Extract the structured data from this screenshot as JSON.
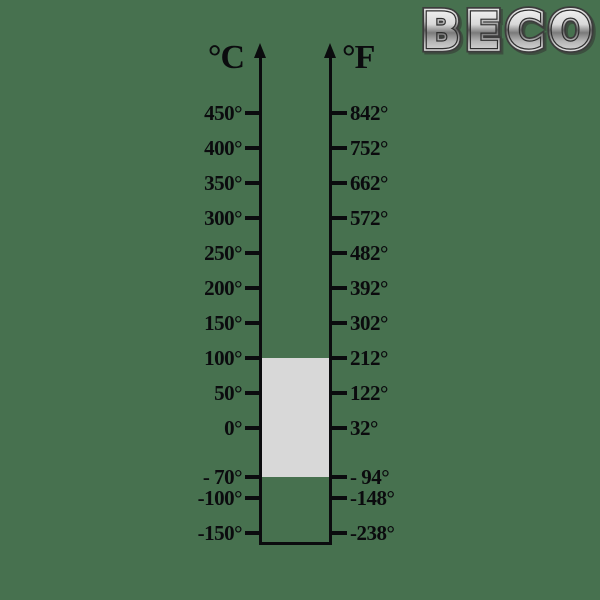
{
  "logo": {
    "text": "BECO"
  },
  "colors": {
    "background": "#47714F",
    "ink": "#0b0b0e",
    "highlight_fill": "#d8d8d8",
    "logo_silver": "#d8d8d8",
    "logo_outline": "#3c3c3c"
  },
  "chart_data": {
    "type": "table",
    "title": "",
    "left_axis": {
      "label": "°C"
    },
    "right_axis": {
      "label": "°F"
    },
    "ticks": [
      {
        "celsius": 450,
        "c_label": "450°",
        "f_label": "842°"
      },
      {
        "celsius": 400,
        "c_label": "400°",
        "f_label": "752°"
      },
      {
        "celsius": 350,
        "c_label": "350°",
        "f_label": "662°"
      },
      {
        "celsius": 300,
        "c_label": "300°",
        "f_label": "572°"
      },
      {
        "celsius": 250,
        "c_label": "250°",
        "f_label": "482°"
      },
      {
        "celsius": 200,
        "c_label": "200°",
        "f_label": "392°"
      },
      {
        "celsius": 150,
        "c_label": "150°",
        "f_label": "302°"
      },
      {
        "celsius": 100,
        "c_label": "100°",
        "f_label": "212°"
      },
      {
        "celsius": 50,
        "c_label": "50°",
        "f_label": "122°"
      },
      {
        "celsius": 0,
        "c_label": "0°",
        "f_label": "32°"
      },
      {
        "celsius": -70,
        "c_label": "- 70°",
        "f_label": "- 94°"
      },
      {
        "celsius": -100,
        "c_label": "-100°",
        "f_label": "-148°"
      },
      {
        "celsius": -150,
        "c_label": "-150°",
        "f_label": "-238°"
      }
    ],
    "highlight_range": {
      "celsius_min": -70,
      "celsius_max": 100
    },
    "layout": {
      "axis_gap_highlighted": true,
      "legend": "none",
      "grid": "off"
    }
  }
}
